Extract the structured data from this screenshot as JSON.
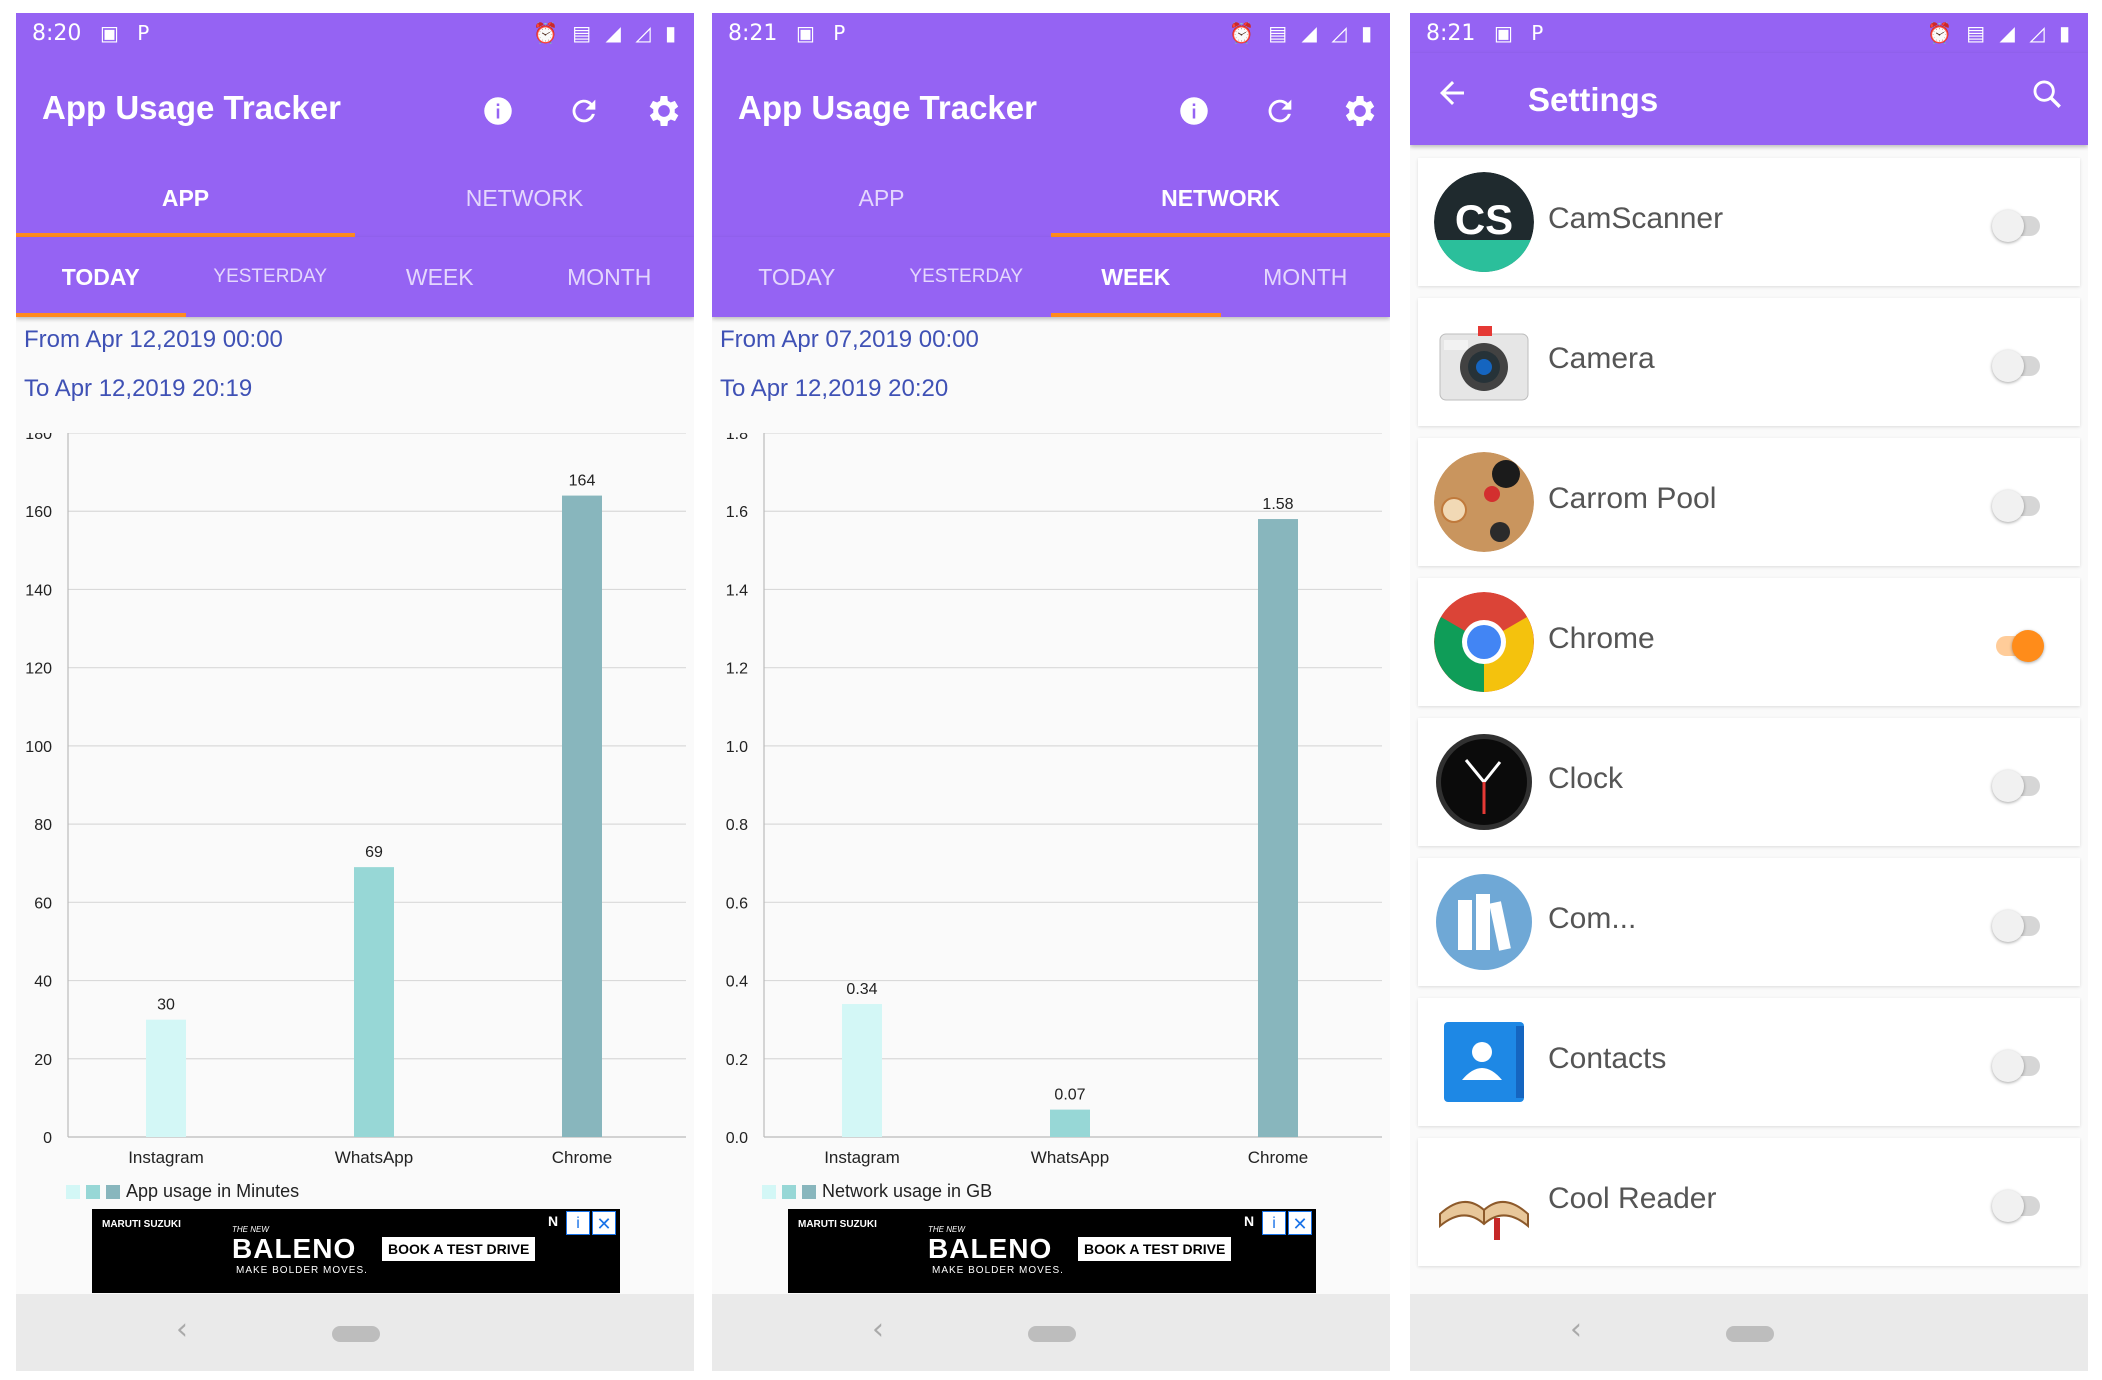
{
  "screen1": {
    "status_time": "8:20",
    "app_title": "App Usage Tracker",
    "tabs": [
      "APP",
      "NETWORK"
    ],
    "active_tab": "APP",
    "periods": [
      "TODAY",
      "YESTERDAY",
      "WEEK",
      "MONTH"
    ],
    "active_period": "TODAY",
    "from": "From Apr 12,2019 00:00",
    "to": "To Apr 12,2019 20:19",
    "legend": "App usage in Minutes",
    "chart_data": {
      "type": "bar",
      "categories": [
        "Instagram",
        "WhatsApp",
        "Chrome"
      ],
      "values": [
        30,
        69,
        164
      ],
      "data_labels": [
        "30",
        "69",
        "164"
      ],
      "ylim": [
        0,
        180
      ],
      "yticks": [
        "0",
        "20",
        "40",
        "60",
        "80",
        "100",
        "120",
        "140",
        "160",
        "180"
      ],
      "colors": [
        "#d3f7f6",
        "#97d7d6",
        "#88b6bd"
      ],
      "legend": "App usage in Minutes",
      "grid": true
    }
  },
  "screen2": {
    "status_time": "8:21",
    "app_title": "App Usage Tracker",
    "tabs": [
      "APP",
      "NETWORK"
    ],
    "active_tab": "NETWORK",
    "periods": [
      "TODAY",
      "YESTERDAY",
      "WEEK",
      "MONTH"
    ],
    "active_period": "WEEK",
    "from": "From Apr 07,2019 00:00",
    "to": "To Apr 12,2019 20:20",
    "legend": "Network usage in GB",
    "chart_data": {
      "type": "bar",
      "categories": [
        "Instagram",
        "WhatsApp",
        "Chrome"
      ],
      "values": [
        0.34,
        0.07,
        1.58
      ],
      "data_labels": [
        "0.34",
        "0.07",
        "1.58"
      ],
      "ylim": [
        0,
        1.8
      ],
      "yticks": [
        "0.0",
        "0.2",
        "0.4",
        "0.6",
        "0.8",
        "1.0",
        "1.2",
        "1.4",
        "1.6",
        "1.8"
      ],
      "colors": [
        "#d3f7f6",
        "#97d7d6",
        "#88b6bd"
      ],
      "legend": "Network usage in GB",
      "grid": true
    }
  },
  "ad": {
    "brand": "MARUTI SUZUKI",
    "pre": "THE NEW",
    "model": "BALENO",
    "tagline": "MAKE BOLDER MOVES.",
    "cta": "BOOK A TEST DRIVE",
    "n": "N",
    "info": "i",
    "close": "✕"
  },
  "screen3": {
    "status_time": "8:21",
    "title": "Settings",
    "apps": [
      {
        "name": "CamScanner",
        "enabled": false,
        "icon": "camscanner-icon"
      },
      {
        "name": "Camera",
        "enabled": false,
        "icon": "camera-icon"
      },
      {
        "name": "Carrom Pool",
        "enabled": false,
        "icon": "carrom-pool-icon"
      },
      {
        "name": "Chrome",
        "enabled": true,
        "icon": "chrome-icon"
      },
      {
        "name": "Clock",
        "enabled": false,
        "icon": "clock-icon"
      },
      {
        "name": "Com...",
        "enabled": false,
        "icon": "books-icon"
      },
      {
        "name": "Contacts",
        "enabled": false,
        "icon": "contacts-icon"
      },
      {
        "name": "Cool Reader",
        "enabled": false,
        "icon": "cool-reader-icon"
      }
    ]
  },
  "colors": {
    "primary": "#9563f3",
    "accent": "#ff8a1e",
    "link_text": "#3f51b5"
  }
}
